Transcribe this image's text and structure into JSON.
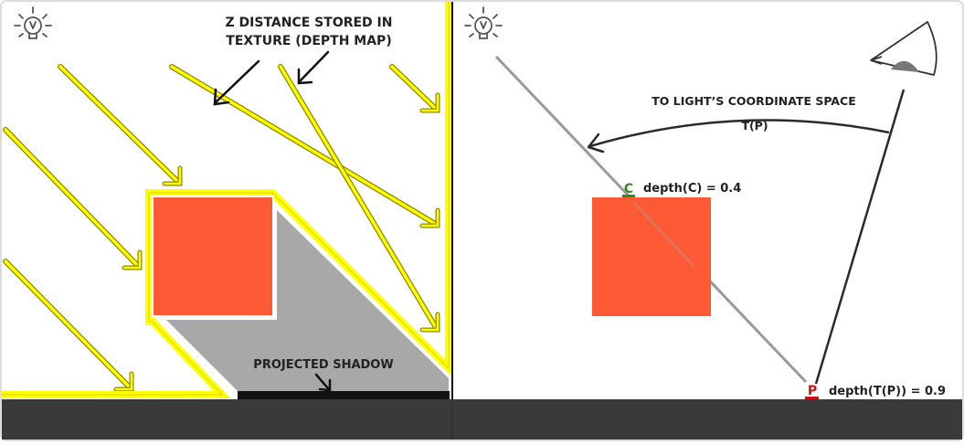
{
  "left_panel": {
    "callout_top_line1": "Z DISTANCE STORED IN",
    "callout_top_line2": "TEXTURE (DEPTH MAP)",
    "callout_bottom": "PROJECTED SHADOW",
    "light_icon": "lightbulb-icon"
  },
  "right_panel": {
    "transform_label": "TO LIGHT’S COORDINATE SPACE",
    "transform_fn": "T(P)",
    "point_c": "C",
    "depth_c": "depth(C) = 0.4",
    "point_p": "P",
    "depth_p": "depth(T(P)) = 0.9",
    "light_icon": "lightbulb-icon",
    "camera_icon": "camera-eye-icon"
  },
  "colors": {
    "yellow": "#ffff00",
    "cube": "#ff5a36",
    "shadow": "#a8a8a8",
    "ground": "#3a3a3a",
    "point_c": "#2e8b1f",
    "point_p": "#cc1111"
  }
}
